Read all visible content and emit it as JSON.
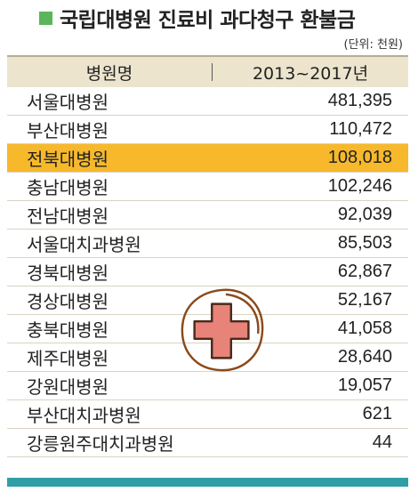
{
  "title": "국립대병원 진료비 과다청구 환불금",
  "unit": "(단위: 천원)",
  "columns": [
    "병원명",
    "2013~2017년"
  ],
  "rows": [
    {
      "name": "서울대병원",
      "value": "481,395"
    },
    {
      "name": "부산대병원",
      "value": "110,472"
    },
    {
      "name": "전북대병원",
      "value": "108,018"
    },
    {
      "name": "충남대병원",
      "value": "102,246"
    },
    {
      "name": "전남대병원",
      "value": "92,039"
    },
    {
      "name": "서울대치과병원",
      "value": "85,503"
    },
    {
      "name": "경북대병원",
      "value": "62,867"
    },
    {
      "name": "경상대병원",
      "value": "52,167"
    },
    {
      "name": "충북대병원",
      "value": "41,058"
    },
    {
      "name": "제주대병원",
      "value": "28,640"
    },
    {
      "name": "강원대병원",
      "value": "19,057"
    },
    {
      "name": "부산대치과병원",
      "value": "621"
    },
    {
      "name": "강릉원주대치과병원",
      "value": "44"
    }
  ],
  "highlight_row": "전북대병원",
  "colors": {
    "highlight": "#f7b92b",
    "header": "#ece4cd",
    "accent": "#5bb55a",
    "bottom_bar": "#2f9ea7",
    "cross": "#e8837a"
  }
}
